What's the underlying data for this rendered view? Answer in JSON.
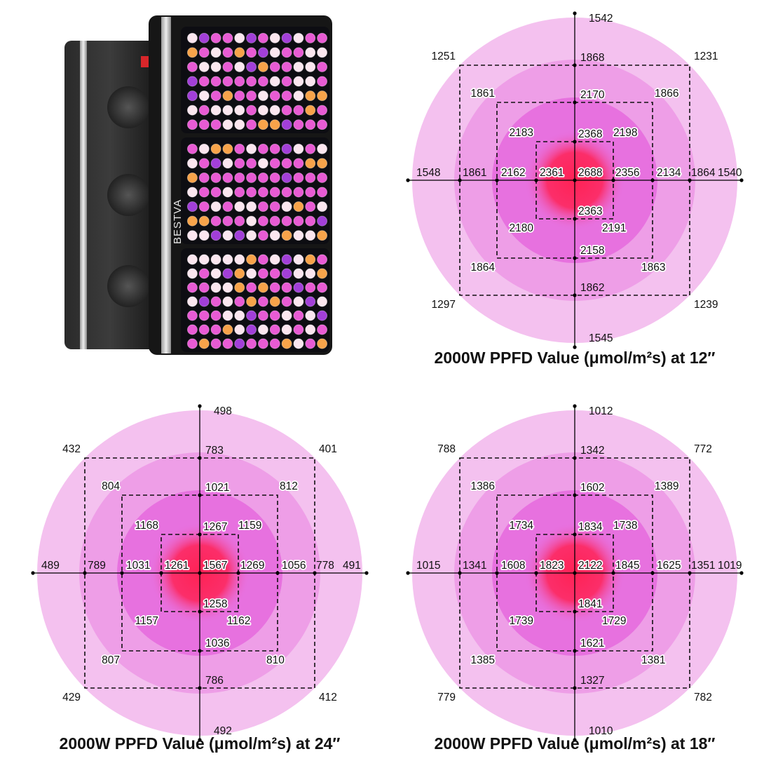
{
  "product": {
    "brand": "BESTVA",
    "colors": {
      "housing": "#1b1b1b",
      "led_pink": "#e85bd4",
      "led_white": "#fbe6ef",
      "led_warm": "#f7a34a",
      "led_purple": "#a23fd8"
    }
  },
  "colors": {
    "ring_outer": "#f4c1ef",
    "ring_mid": "#ee9ee7",
    "ring_inner": "#e771df",
    "center_glow": "#ff2255",
    "axis": "#000000"
  },
  "charts": [
    {
      "id": "12in",
      "title": "2000W PPFD Value (μmol/m²s) at 12″",
      "values": {
        "top": "1542",
        "bottom": "1545",
        "left": "1548",
        "right": "1540",
        "outer_tl": "1251",
        "outer_tr": "1231",
        "outer_bl": "1297",
        "outer_br": "1239",
        "outer_top": "1868",
        "outer_bottom": "1862",
        "outer_left": "1861",
        "outer_right": "1864",
        "mid_tl": "1861",
        "mid_tr": "1866",
        "mid_bl": "1864",
        "mid_br": "1863",
        "mid_top": "2170",
        "mid_bottom": "2158",
        "mid_left": "2162",
        "mid_right": "2134",
        "inner_tl": "2183",
        "inner_tr": "2198",
        "inner_bl": "2180",
        "inner_br": "2191",
        "inner_top": "2368",
        "inner_bottom": "2363",
        "inner_left": "2361",
        "inner_right": "2356",
        "center": "2688"
      }
    },
    {
      "id": "24in",
      "title": "2000W PPFD Value (μmol/m²s) at 24″",
      "values": {
        "top": "498",
        "bottom": "492",
        "left": "489",
        "right": "491",
        "outer_tl": "432",
        "outer_tr": "401",
        "outer_bl": "429",
        "outer_br": "412",
        "outer_top": "783",
        "outer_bottom": "786",
        "outer_left": "789",
        "outer_right": "778",
        "mid_tl": "804",
        "mid_tr": "812",
        "mid_bl": "807",
        "mid_br": "810",
        "mid_top": "1021",
        "mid_bottom": "1036",
        "mid_left": "1031",
        "mid_right": "1056",
        "inner_tl": "1168",
        "inner_tr": "1159",
        "inner_bl": "1157",
        "inner_br": "1162",
        "inner_top": "1267",
        "inner_bottom": "1258",
        "inner_left": "1261",
        "inner_right": "1269",
        "center": "1567"
      }
    },
    {
      "id": "18in",
      "title": "2000W PPFD Value (μmol/m²s) at 18″",
      "values": {
        "top": "1012",
        "bottom": "1010",
        "left": "1015",
        "right": "1019",
        "outer_tl": "788",
        "outer_tr": "772",
        "outer_bl": "779",
        "outer_br": "782",
        "outer_top": "1342",
        "outer_bottom": "1327",
        "outer_left": "1341",
        "outer_right": "1351",
        "mid_tl": "1386",
        "mid_tr": "1389",
        "mid_bl": "1385",
        "mid_br": "1381",
        "mid_top": "1602",
        "mid_bottom": "1621",
        "mid_left": "1608",
        "mid_right": "1625",
        "inner_tl": "1734",
        "inner_tr": "1738",
        "inner_bl": "1739",
        "inner_br": "1729",
        "inner_top": "1834",
        "inner_bottom": "1841",
        "inner_left": "1823",
        "inner_right": "1845",
        "center": "2122"
      }
    }
  ]
}
